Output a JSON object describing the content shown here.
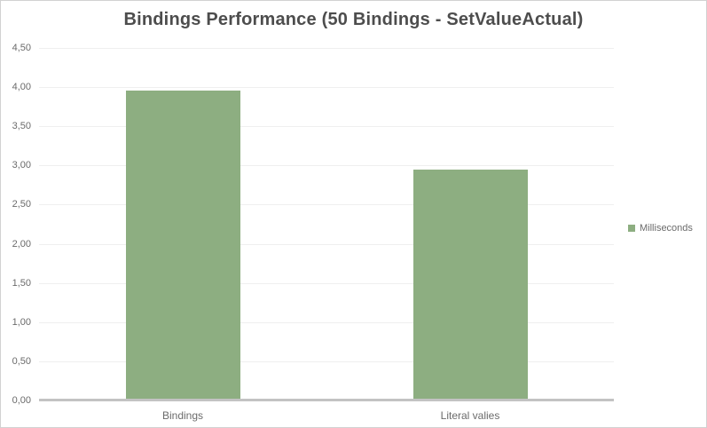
{
  "window": {
    "background": "#ffffff",
    "border_color": "#d2d2d2"
  },
  "chart_data": {
    "type": "bar",
    "title": "Bindings Performance (50 Bindings - SetValueActual)",
    "categories": [
      "Bindings",
      "Literal valies"
    ],
    "series": [
      {
        "name": "Milliseconds",
        "values": [
          3.96,
          2.95
        ],
        "color": "#8dae81"
      }
    ],
    "xlabel": "",
    "ylabel": "",
    "ylim": [
      0,
      4.5
    ],
    "y_tick_step": 0.5,
    "y_tick_labels": [
      "0,00",
      "0,50",
      "1,00",
      "1,50",
      "2,00",
      "2,50",
      "3,00",
      "3,50",
      "4,00",
      "4,50"
    ],
    "grid": "horizontal",
    "legend_position": "right"
  },
  "legend": {
    "items": [
      {
        "label": "Milliseconds",
        "color": "#8dae81"
      }
    ]
  },
  "colors": {
    "title_text": "#4d4d4d",
    "axis_text": "#6b6b6b",
    "gridline": "#efefef",
    "axis_line": "#c3c3c3",
    "bar_fill": "#8dae81"
  }
}
